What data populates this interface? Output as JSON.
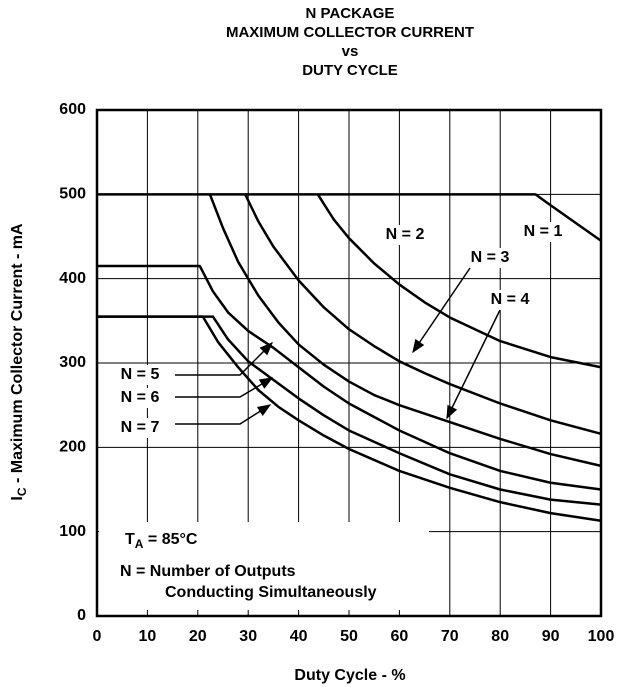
{
  "chart_data": {
    "type": "line",
    "title": [
      "N PACKAGE",
      "MAXIMUM COLLECTOR CURRENT",
      "vs",
      "DUTY CYCLE"
    ],
    "xlabel": "Duty Cycle - %",
    "ylabel": [
      "I",
      "C",
      " - Maximum Collector Current - mA"
    ],
    "annotations": {
      "temperature": [
        "T",
        "A",
        " = 85°C"
      ],
      "note": [
        "N = Number of Outputs",
        "Conducting Simultaneously"
      ]
    },
    "xlim": [
      0,
      100
    ],
    "ylim": [
      0,
      600
    ],
    "xticks": [
      0,
      10,
      20,
      30,
      40,
      50,
      60,
      70,
      80,
      90,
      100
    ],
    "yticks": [
      0,
      100,
      200,
      300,
      400,
      500,
      600
    ],
    "grid": true,
    "series": [
      {
        "name": "N = 1",
        "color": "#000000",
        "x": [
          0,
          87,
          90,
          95,
          100
        ],
        "values": [
          500,
          500,
          487,
          466,
          445
        ]
      },
      {
        "name": "N = 2",
        "color": "#000000",
        "x": [
          43.8,
          47,
          50,
          55,
          60,
          65,
          70,
          80,
          90,
          100
        ],
        "values": [
          500,
          470,
          448,
          418,
          393,
          372,
          354,
          326,
          307,
          295
        ]
      },
      {
        "name": "N = 3",
        "color": "#000000",
        "x": [
          29.4,
          32,
          35,
          40,
          45,
          50,
          55,
          60,
          65,
          70,
          80,
          90,
          100
        ],
        "values": [
          500,
          468,
          438,
          398,
          366,
          340,
          320,
          302,
          288,
          275,
          252,
          232,
          216
        ]
      },
      {
        "name": "N = 4",
        "color": "#000000",
        "x": [
          22.4,
          25,
          28,
          32,
          36,
          40,
          45,
          50,
          55,
          60,
          70,
          80,
          90,
          100
        ],
        "values": [
          500,
          460,
          420,
          380,
          348,
          322,
          298,
          278,
          262,
          250,
          230,
          210,
          192,
          178
        ]
      },
      {
        "name": "N = 5",
        "color": "#000000",
        "x": [
          0,
          20.4,
          23,
          26,
          30,
          35,
          40,
          45,
          50,
          60,
          70,
          80,
          90,
          100
        ],
        "values": [
          415,
          415,
          385,
          360,
          338,
          318,
          295,
          272,
          252,
          220,
          193,
          172,
          158,
          150
        ]
      },
      {
        "name": "N = 6",
        "color": "#000000",
        "x": [
          0,
          23,
          26,
          30,
          35,
          40,
          45,
          50,
          60,
          70,
          80,
          90,
          100
        ],
        "values": [
          355,
          355,
          328,
          302,
          280,
          258,
          238,
          220,
          193,
          168,
          150,
          138,
          132
        ]
      },
      {
        "name": "N = 7",
        "color": "#000000",
        "x": [
          0,
          21,
          24,
          28,
          32,
          36,
          40,
          45,
          50,
          60,
          70,
          80,
          90,
          100
        ],
        "values": [
          355,
          355,
          325,
          295,
          268,
          248,
          232,
          214,
          198,
          172,
          152,
          135,
          122,
          113
        ]
      }
    ]
  }
}
